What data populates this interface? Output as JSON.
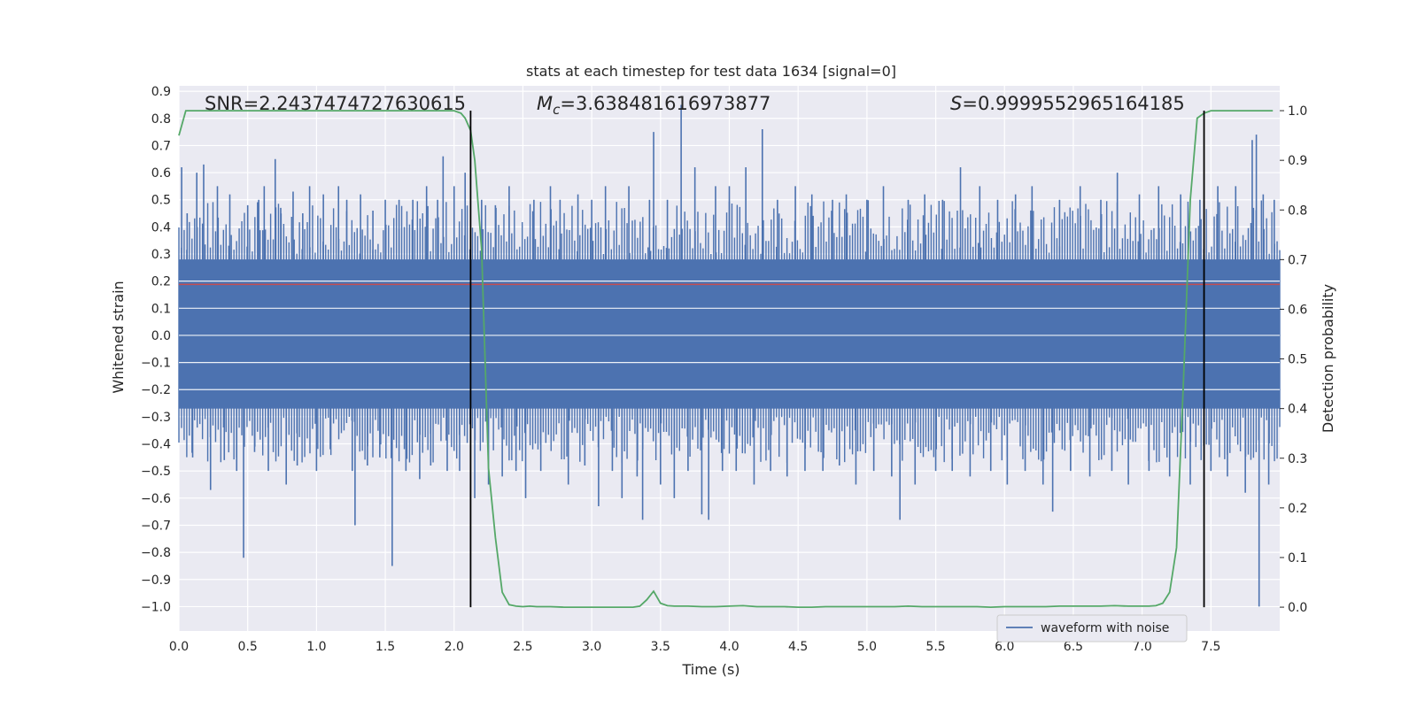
{
  "chart_data": {
    "type": "line",
    "title": "stats at each timestep for test data 1634 [signal=0]",
    "xlabel": "Time (s)",
    "ylabel": "Whitened strain",
    "y2label": "Detection probability",
    "xlim": [
      0.0,
      8.0
    ],
    "ylim": [
      -1.09,
      0.92
    ],
    "y2lim": [
      -0.048,
      1.05
    ],
    "x_ticks": [
      "0.0",
      "0.5",
      "1.0",
      "1.5",
      "2.0",
      "2.5",
      "3.0",
      "3.5",
      "4.0",
      "4.5",
      "5.0",
      "5.5",
      "6.0",
      "6.5",
      "7.0",
      "7.5"
    ],
    "y_ticks": [
      "0.9",
      "0.8",
      "0.7",
      "0.6",
      "0.5",
      "0.4",
      "0.3",
      "0.2",
      "0.1",
      "0.0",
      "−0.1",
      "−0.2",
      "−0.3",
      "−0.4",
      "−0.5",
      "−0.6",
      "−0.7",
      "−0.8",
      "−0.9",
      "−1.0"
    ],
    "y2_ticks": [
      "1.0",
      "0.9",
      "0.8",
      "0.7",
      "0.6",
      "0.5",
      "0.4",
      "0.3",
      "0.2",
      "0.1",
      "0.0"
    ],
    "grid": true,
    "legend_location": "lower right",
    "annotations": {
      "snr": "SNR=2.2437474727630615",
      "mc_symbol": "M",
      "mc_sub": "c",
      "mc_value": "=3.638481616973877",
      "s_symbol": "S",
      "s_value": "=0.9999552965164185"
    },
    "threshold": 0.65,
    "vlines": [
      2.12,
      7.45
    ],
    "series": [
      {
        "name": "waveform with noise",
        "axis": "left",
        "color": "#4c72b0",
        "band_lower": -0.27,
        "band_upper": 0.28,
        "spikes": [
          {
            "x": 0.02,
            "y": 0.62
          },
          {
            "x": 0.06,
            "y": 0.45
          },
          {
            "x": 0.1,
            "y": -0.45
          },
          {
            "x": 0.13,
            "y": 0.6
          },
          {
            "x": 0.18,
            "y": 0.63
          },
          {
            "x": 0.23,
            "y": -0.57
          },
          {
            "x": 0.28,
            "y": 0.55
          },
          {
            "x": 0.33,
            "y": -0.46
          },
          {
            "x": 0.37,
            "y": 0.52
          },
          {
            "x": 0.42,
            "y": -0.5
          },
          {
            "x": 0.47,
            "y": -0.82
          },
          {
            "x": 0.5,
            "y": 0.48
          },
          {
            "x": 0.55,
            "y": -0.43
          },
          {
            "x": 0.58,
            "y": 0.5
          },
          {
            "x": 0.62,
            "y": 0.55
          },
          {
            "x": 0.65,
            "y": -0.5
          },
          {
            "x": 0.7,
            "y": 0.65
          },
          {
            "x": 0.74,
            "y": 0.47
          },
          {
            "x": 0.78,
            "y": -0.55
          },
          {
            "x": 0.83,
            "y": 0.53
          },
          {
            "x": 0.86,
            "y": -0.48
          },
          {
            "x": 0.9,
            "y": 0.45
          },
          {
            "x": 0.95,
            "y": 0.55
          },
          {
            "x": 1.0,
            "y": -0.5
          },
          {
            "x": 1.05,
            "y": 0.52
          },
          {
            "x": 1.1,
            "y": -0.42
          },
          {
            "x": 1.16,
            "y": 0.55
          },
          {
            "x": 1.22,
            "y": 0.5
          },
          {
            "x": 1.26,
            "y": -0.5
          },
          {
            "x": 1.28,
            "y": -0.7
          },
          {
            "x": 1.32,
            "y": 0.52
          },
          {
            "x": 1.37,
            "y": -0.48
          },
          {
            "x": 1.41,
            "y": 0.46
          },
          {
            "x": 1.46,
            "y": -0.45
          },
          {
            "x": 1.5,
            "y": 0.5
          },
          {
            "x": 1.55,
            "y": -0.85
          },
          {
            "x": 1.6,
            "y": 0.5
          },
          {
            "x": 1.65,
            "y": -0.5
          },
          {
            "x": 1.7,
            "y": 0.5
          },
          {
            "x": 1.75,
            "y": -0.53
          },
          {
            "x": 1.8,
            "y": 0.55
          },
          {
            "x": 1.83,
            "y": -0.48
          },
          {
            "x": 1.88,
            "y": 0.5
          },
          {
            "x": 1.92,
            "y": 0.66
          },
          {
            "x": 1.95,
            "y": -0.5
          },
          {
            "x": 2.0,
            "y": 0.55
          },
          {
            "x": 2.04,
            "y": -0.5
          },
          {
            "x": 2.08,
            "y": 0.6
          },
          {
            "x": 2.15,
            "y": -0.6
          },
          {
            "x": 2.2,
            "y": 0.5
          },
          {
            "x": 2.25,
            "y": -0.55
          },
          {
            "x": 2.3,
            "y": 0.48
          },
          {
            "x": 2.35,
            "y": -0.52
          },
          {
            "x": 2.4,
            "y": 0.55
          },
          {
            "x": 2.45,
            "y": -0.5
          },
          {
            "x": 2.52,
            "y": -0.6
          },
          {
            "x": 2.58,
            "y": 0.5
          },
          {
            "x": 2.63,
            "y": -0.5
          },
          {
            "x": 2.7,
            "y": 0.55
          },
          {
            "x": 2.77,
            "y": 0.5
          },
          {
            "x": 2.83,
            "y": -0.55
          },
          {
            "x": 2.9,
            "y": 0.52
          },
          {
            "x": 2.95,
            "y": -0.48
          },
          {
            "x": 3.0,
            "y": 0.5
          },
          {
            "x": 3.05,
            "y": -0.63
          },
          {
            "x": 3.1,
            "y": 0.55
          },
          {
            "x": 3.15,
            "y": -0.5
          },
          {
            "x": 3.22,
            "y": -0.6
          },
          {
            "x": 3.27,
            "y": 0.55
          },
          {
            "x": 3.33,
            "y": -0.52
          },
          {
            "x": 3.37,
            "y": -0.68
          },
          {
            "x": 3.42,
            "y": 0.5
          },
          {
            "x": 3.45,
            "y": 0.75
          },
          {
            "x": 3.5,
            "y": -0.55
          },
          {
            "x": 3.55,
            "y": 0.5
          },
          {
            "x": 3.6,
            "y": -0.6
          },
          {
            "x": 3.65,
            "y": 0.85
          },
          {
            "x": 3.7,
            "y": -0.5
          },
          {
            "x": 3.75,
            "y": 0.62
          },
          {
            "x": 3.8,
            "y": -0.66
          },
          {
            "x": 3.85,
            "y": -0.68
          },
          {
            "x": 3.9,
            "y": 0.55
          },
          {
            "x": 3.95,
            "y": -0.5
          },
          {
            "x": 4.0,
            "y": 0.55
          },
          {
            "x": 4.05,
            "y": -0.5
          },
          {
            "x": 4.12,
            "y": 0.62
          },
          {
            "x": 4.18,
            "y": -0.55
          },
          {
            "x": 4.24,
            "y": 0.76
          },
          {
            "x": 4.3,
            "y": -0.5
          },
          {
            "x": 4.35,
            "y": 0.5
          },
          {
            "x": 4.42,
            "y": -0.52
          },
          {
            "x": 4.48,
            "y": 0.55
          },
          {
            "x": 4.55,
            "y": -0.5
          },
          {
            "x": 4.6,
            "y": 0.52
          },
          {
            "x": 4.68,
            "y": -0.5
          },
          {
            "x": 4.75,
            "y": 0.5
          },
          {
            "x": 4.8,
            "y": -0.48
          },
          {
            "x": 4.85,
            "y": 0.52
          },
          {
            "x": 4.92,
            "y": -0.55
          },
          {
            "x": 5.0,
            "y": 0.5
          },
          {
            "x": 5.05,
            "y": -0.5
          },
          {
            "x": 5.12,
            "y": 0.55
          },
          {
            "x": 5.18,
            "y": -0.52
          },
          {
            "x": 5.24,
            "y": -0.68
          },
          {
            "x": 5.3,
            "y": 0.5
          },
          {
            "x": 5.35,
            "y": -0.55
          },
          {
            "x": 5.42,
            "y": 0.52
          },
          {
            "x": 5.5,
            "y": -0.5
          },
          {
            "x": 5.55,
            "y": 0.5
          },
          {
            "x": 5.62,
            "y": -0.5
          },
          {
            "x": 5.68,
            "y": 0.62
          },
          {
            "x": 5.75,
            "y": -0.52
          },
          {
            "x": 5.82,
            "y": 0.55
          },
          {
            "x": 5.9,
            "y": -0.5
          },
          {
            "x": 5.95,
            "y": 0.5
          },
          {
            "x": 6.02,
            "y": -0.55
          },
          {
            "x": 6.08,
            "y": 0.52
          },
          {
            "x": 6.15,
            "y": -0.5
          },
          {
            "x": 6.2,
            "y": 0.55
          },
          {
            "x": 6.28,
            "y": -0.55
          },
          {
            "x": 6.35,
            "y": -0.65
          },
          {
            "x": 6.4,
            "y": 0.5
          },
          {
            "x": 6.48,
            "y": -0.5
          },
          {
            "x": 6.55,
            "y": 0.55
          },
          {
            "x": 6.62,
            "y": -0.52
          },
          {
            "x": 6.7,
            "y": 0.5
          },
          {
            "x": 6.78,
            "y": -0.5
          },
          {
            "x": 6.82,
            "y": 0.6
          },
          {
            "x": 6.9,
            "y": -0.55
          },
          {
            "x": 6.98,
            "y": 0.52
          },
          {
            "x": 7.05,
            "y": -0.5
          },
          {
            "x": 7.12,
            "y": 0.55
          },
          {
            "x": 7.2,
            "y": -0.52
          },
          {
            "x": 7.28,
            "y": 0.52
          },
          {
            "x": 7.35,
            "y": -0.55
          },
          {
            "x": 7.42,
            "y": 0.5
          },
          {
            "x": 7.5,
            "y": -0.5
          },
          {
            "x": 7.55,
            "y": 0.55
          },
          {
            "x": 7.62,
            "y": -0.52
          },
          {
            "x": 7.68,
            "y": 0.55
          },
          {
            "x": 7.75,
            "y": -0.58
          },
          {
            "x": 7.8,
            "y": 0.72
          },
          {
            "x": 7.83,
            "y": 0.74
          },
          {
            "x": 7.85,
            "y": -1.0
          },
          {
            "x": 7.88,
            "y": 0.52
          },
          {
            "x": 7.92,
            "y": -0.55
          },
          {
            "x": 7.96,
            "y": 0.5
          }
        ]
      },
      {
        "name": "",
        "axis": "right",
        "color": "#55a868",
        "x": [
          0.0,
          0.05,
          0.1,
          0.5,
          1.0,
          1.5,
          2.0,
          2.05,
          2.08,
          2.12,
          2.15,
          2.2,
          2.25,
          2.3,
          2.35,
          2.4,
          2.45,
          2.5,
          2.55,
          2.6,
          2.7,
          2.8,
          2.9,
          3.0,
          3.1,
          3.2,
          3.3,
          3.35,
          3.4,
          3.45,
          3.5,
          3.55,
          3.6,
          3.7,
          3.8,
          3.9,
          4.0,
          4.1,
          4.2,
          4.3,
          4.4,
          4.5,
          4.6,
          4.7,
          4.8,
          4.9,
          5.0,
          5.1,
          5.2,
          5.3,
          5.4,
          5.5,
          5.6,
          5.7,
          5.8,
          5.9,
          6.0,
          6.1,
          6.2,
          6.3,
          6.4,
          6.5,
          6.6,
          6.7,
          6.8,
          6.9,
          7.0,
          7.05,
          7.1,
          7.15,
          7.2,
          7.25,
          7.3,
          7.35,
          7.4,
          7.45,
          7.5,
          7.55,
          7.6,
          7.7,
          7.8,
          7.9,
          7.95
        ],
        "y": [
          0.95,
          1.0,
          1.0,
          1.0,
          1.0,
          1.0,
          1.0,
          0.995,
          0.985,
          0.96,
          0.9,
          0.72,
          0.28,
          0.14,
          0.03,
          0.005,
          0.002,
          0.001,
          0.002,
          0.001,
          0.001,
          0.0,
          0.0,
          0.0,
          0.0,
          0.0,
          0.0,
          0.002,
          0.015,
          0.032,
          0.008,
          0.003,
          0.002,
          0.002,
          0.001,
          0.001,
          0.002,
          0.003,
          0.001,
          0.001,
          0.001,
          0.0,
          0.0,
          0.001,
          0.001,
          0.001,
          0.001,
          0.001,
          0.001,
          0.002,
          0.001,
          0.001,
          0.001,
          0.001,
          0.001,
          0.0,
          0.001,
          0.001,
          0.001,
          0.001,
          0.002,
          0.002,
          0.002,
          0.002,
          0.003,
          0.002,
          0.002,
          0.002,
          0.003,
          0.008,
          0.03,
          0.12,
          0.45,
          0.82,
          0.985,
          0.995,
          1.0,
          1.0,
          1.0,
          1.0,
          1.0,
          1.0,
          1.0
        ]
      }
    ]
  }
}
